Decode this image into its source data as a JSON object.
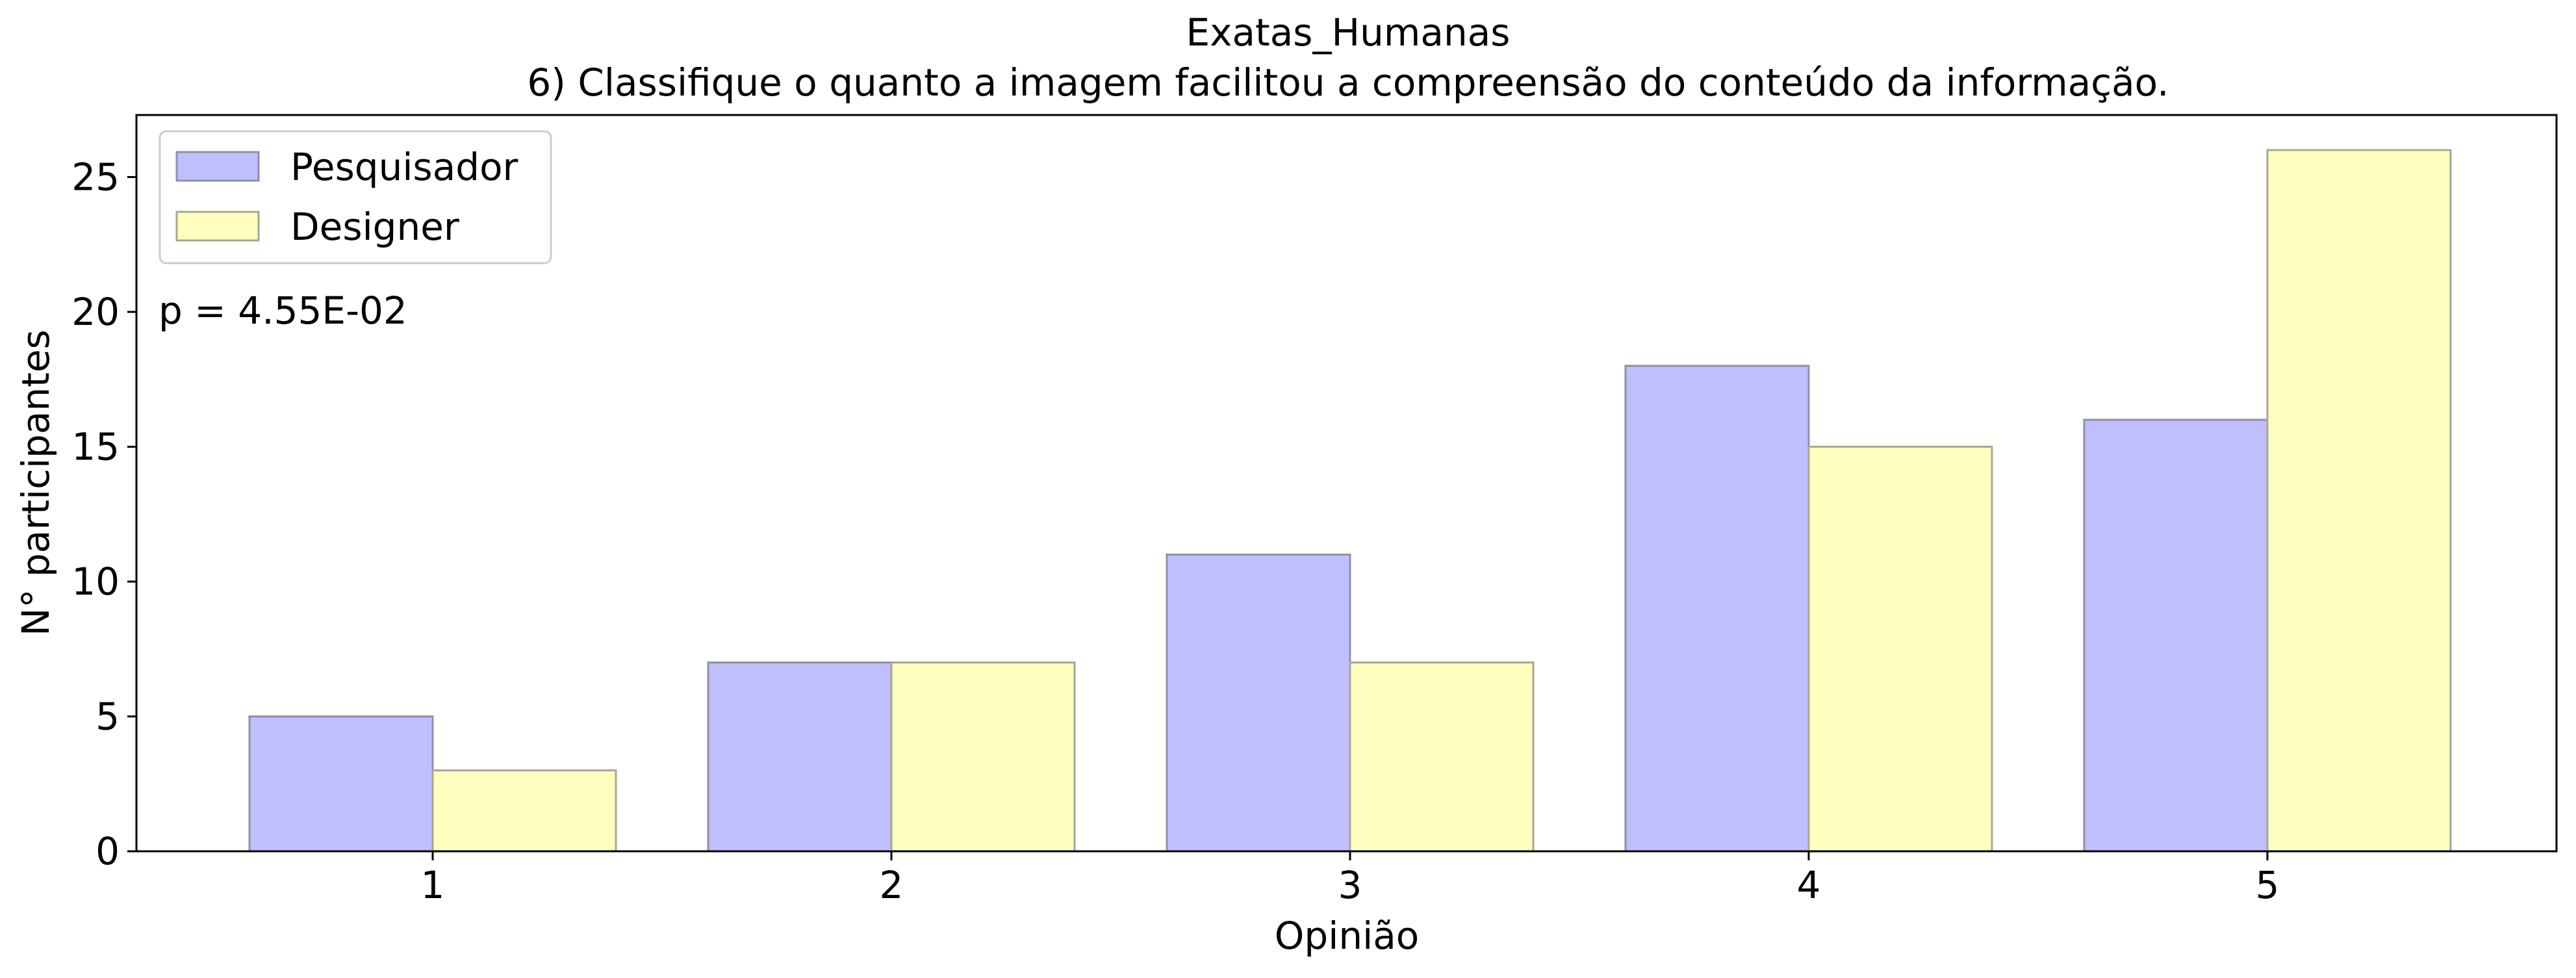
{
  "chart_data": {
    "type": "bar",
    "title": "Exatas_Humanas",
    "subtitle": "6) Classifique o quanto a imagem facilitou a compreensão do conteúdo da informação.",
    "xlabel": "Opinião",
    "ylabel": "N° participantes",
    "categories": [
      "1",
      "2",
      "3",
      "4",
      "5"
    ],
    "series": [
      {
        "name": "Pesquisador",
        "values": [
          5,
          7,
          11,
          18,
          16
        ],
        "color": "#bfbffe",
        "edge": "#8f8fa8"
      },
      {
        "name": "Designer",
        "values": [
          3,
          7,
          7,
          15,
          26
        ],
        "color": "#fefebf",
        "edge": "#a8a890"
      }
    ],
    "ylim": [
      0,
      27.3
    ],
    "yticks": [
      0,
      5,
      10,
      15,
      20,
      25
    ],
    "legend_position": "top-left",
    "grid": false,
    "annotation": "p = 4.55E-02"
  }
}
